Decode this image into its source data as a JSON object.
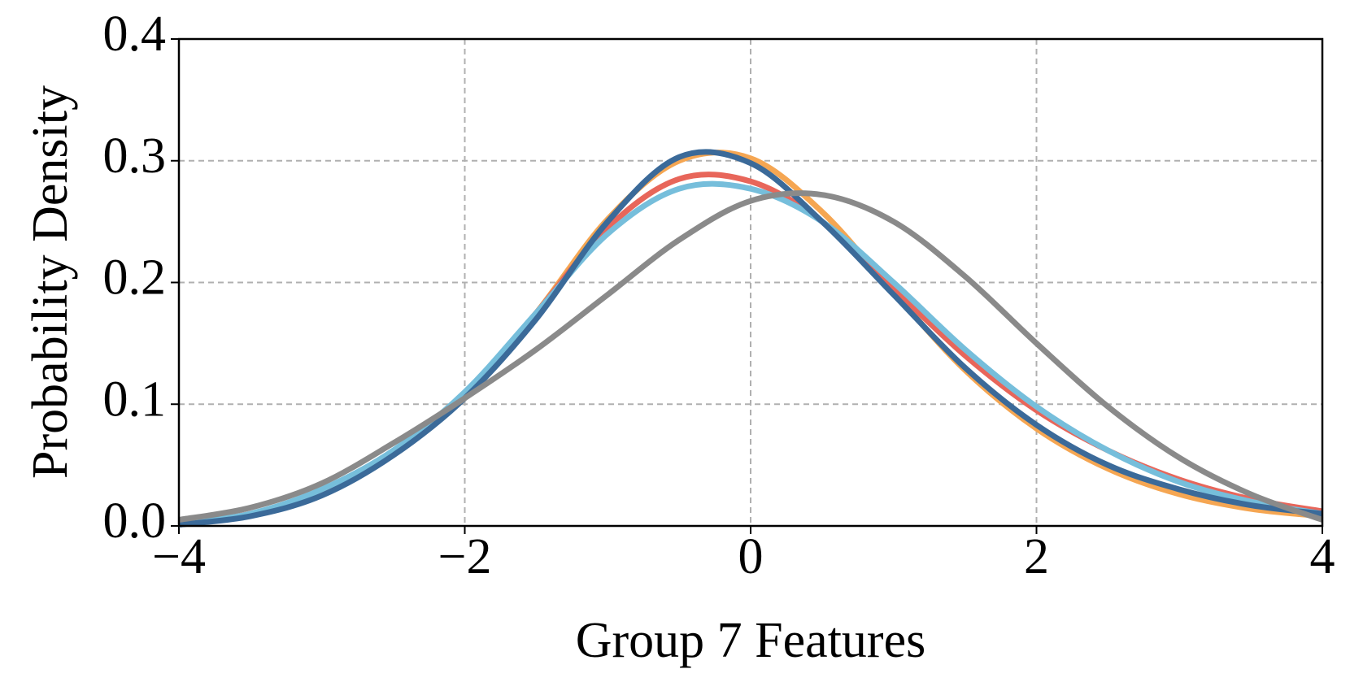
{
  "chart_data": {
    "type": "line",
    "xlabel": "Group 7 Features",
    "ylabel": "Probability Density",
    "x": [
      -4,
      -3.5,
      -3,
      -2.5,
      -2,
      -1.5,
      -1,
      -0.5,
      0,
      0.5,
      1,
      1.5,
      2,
      2.5,
      3,
      3.5,
      4
    ],
    "series": [
      {
        "color": "#f5a652",
        "values": [
          0.002,
          0.009,
          0.027,
          0.06,
          0.107,
          0.175,
          0.252,
          0.3,
          0.302,
          0.258,
          0.192,
          0.128,
          0.08,
          0.047,
          0.026,
          0.014,
          0.008
        ]
      },
      {
        "color": "#e8665a",
        "values": [
          0.002,
          0.01,
          0.028,
          0.06,
          0.108,
          0.175,
          0.245,
          0.285,
          0.283,
          0.25,
          0.195,
          0.14,
          0.095,
          0.062,
          0.038,
          0.022,
          0.012
        ]
      },
      {
        "color": "#76bedb",
        "values": [
          0.002,
          0.01,
          0.03,
          0.062,
          0.11,
          0.175,
          0.24,
          0.277,
          0.277,
          0.25,
          0.2,
          0.145,
          0.098,
          0.062,
          0.036,
          0.02,
          0.01
        ]
      },
      {
        "color": "#3b6a99",
        "values": [
          0.001,
          0.008,
          0.025,
          0.058,
          0.105,
          0.17,
          0.25,
          0.303,
          0.298,
          0.25,
          0.19,
          0.13,
          0.083,
          0.05,
          0.03,
          0.017,
          0.01
        ]
      },
      {
        "color": "#8a8a8a",
        "values": [
          0.005,
          0.015,
          0.035,
          0.068,
          0.105,
          0.145,
          0.19,
          0.235,
          0.267,
          0.272,
          0.25,
          0.205,
          0.15,
          0.098,
          0.056,
          0.026,
          0.005
        ]
      }
    ],
    "xlim": [
      -4,
      4
    ],
    "ylim": [
      0,
      0.4
    ],
    "xticks": [
      {
        "value": -4,
        "label": "−4"
      },
      {
        "value": -2,
        "label": "−2"
      },
      0,
      2,
      4
    ],
    "yticks": [
      {
        "value": 0,
        "label": "0.0"
      },
      0.1,
      0.2,
      0.3,
      0.4
    ],
    "grid": true
  }
}
